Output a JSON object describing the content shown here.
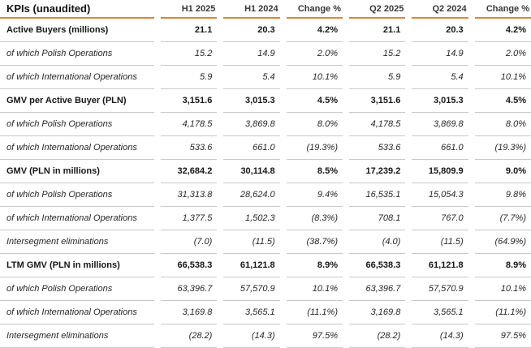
{
  "table": {
    "title": "KPIs (unaudited)",
    "columns": [
      "H1 2025",
      "H1 2024",
      "Change %",
      "Q2 2025",
      "Q2 2024",
      "Change %"
    ],
    "colors": {
      "accent_orange": "#e0823f",
      "separator_gray": "#c8c8c8"
    },
    "rows": [
      {
        "label": "Active Buyers (millions)",
        "style": "bold",
        "values": [
          "21.1",
          "20.3",
          "4.2%",
          "21.1",
          "20.3",
          "4.2%"
        ]
      },
      {
        "label": "of which Polish Operations",
        "style": "sub",
        "values": [
          "15.2",
          "14.9",
          "2.0%",
          "15.2",
          "14.9",
          "2.0%"
        ]
      },
      {
        "label": "of which International Operations",
        "style": "sub",
        "values": [
          "5.9",
          "5.4",
          "10.1%",
          "5.9",
          "5.4",
          "10.1%"
        ]
      },
      {
        "label": "GMV per Active Buyer (PLN)",
        "style": "bold",
        "values": [
          "3,151.6",
          "3,015.3",
          "4.5%",
          "3,151.6",
          "3,015.3",
          "4.5%"
        ]
      },
      {
        "label": "of which Polish Operations",
        "style": "sub",
        "values": [
          "4,178.5",
          "3,869.8",
          "8.0%",
          "4,178.5",
          "3,869.8",
          "8.0%"
        ]
      },
      {
        "label": "of which International Operations",
        "style": "sub",
        "values": [
          "533.6",
          "661.0",
          "(19.3%)",
          "533.6",
          "661.0",
          "(19.3%)"
        ]
      },
      {
        "label": "GMV (PLN in millions)",
        "style": "bold",
        "values": [
          "32,684.2",
          "30,114.8",
          "8.5%",
          "17,239.2",
          "15,809.9",
          "9.0%"
        ]
      },
      {
        "label": "of which Polish Operations",
        "style": "sub",
        "values": [
          "31,313.8",
          "28,624.0",
          "9.4%",
          "16,535.1",
          "15,054.3",
          "9.8%"
        ]
      },
      {
        "label": "of which International Operations",
        "style": "sub",
        "values": [
          "1,377.5",
          "1,502.3",
          "(8.3%)",
          "708.1",
          "767.0",
          "(7.7%)"
        ]
      },
      {
        "label": "Intersegment eliminations",
        "style": "sub",
        "values": [
          "(7.0)",
          "(11.5)",
          "(38.7%)",
          "(4.0)",
          "(11.5)",
          "(64.9%)"
        ]
      },
      {
        "label": "LTM GMV (PLN in millions)",
        "style": "bold",
        "values": [
          "66,538.3",
          "61,121.8",
          "8.9%",
          "66,538.3",
          "61,121.8",
          "8.9%"
        ]
      },
      {
        "label": "of which Polish Operations",
        "style": "sub",
        "values": [
          "63,396.7",
          "57,570.9",
          "10.1%",
          "63,396.7",
          "57,570.9",
          "10.1%"
        ]
      },
      {
        "label": "of which International Operations",
        "style": "sub",
        "values": [
          "3,169.8",
          "3,565.1",
          "(11.1%)",
          "3,169.8",
          "3,565.1",
          "(11.1%)"
        ]
      },
      {
        "label": "Intersegment eliminations",
        "style": "sub",
        "values": [
          "(28.2)",
          "(14.3)",
          "97.5%",
          "(28.2)",
          "(14.3)",
          "97.5%"
        ]
      }
    ]
  }
}
